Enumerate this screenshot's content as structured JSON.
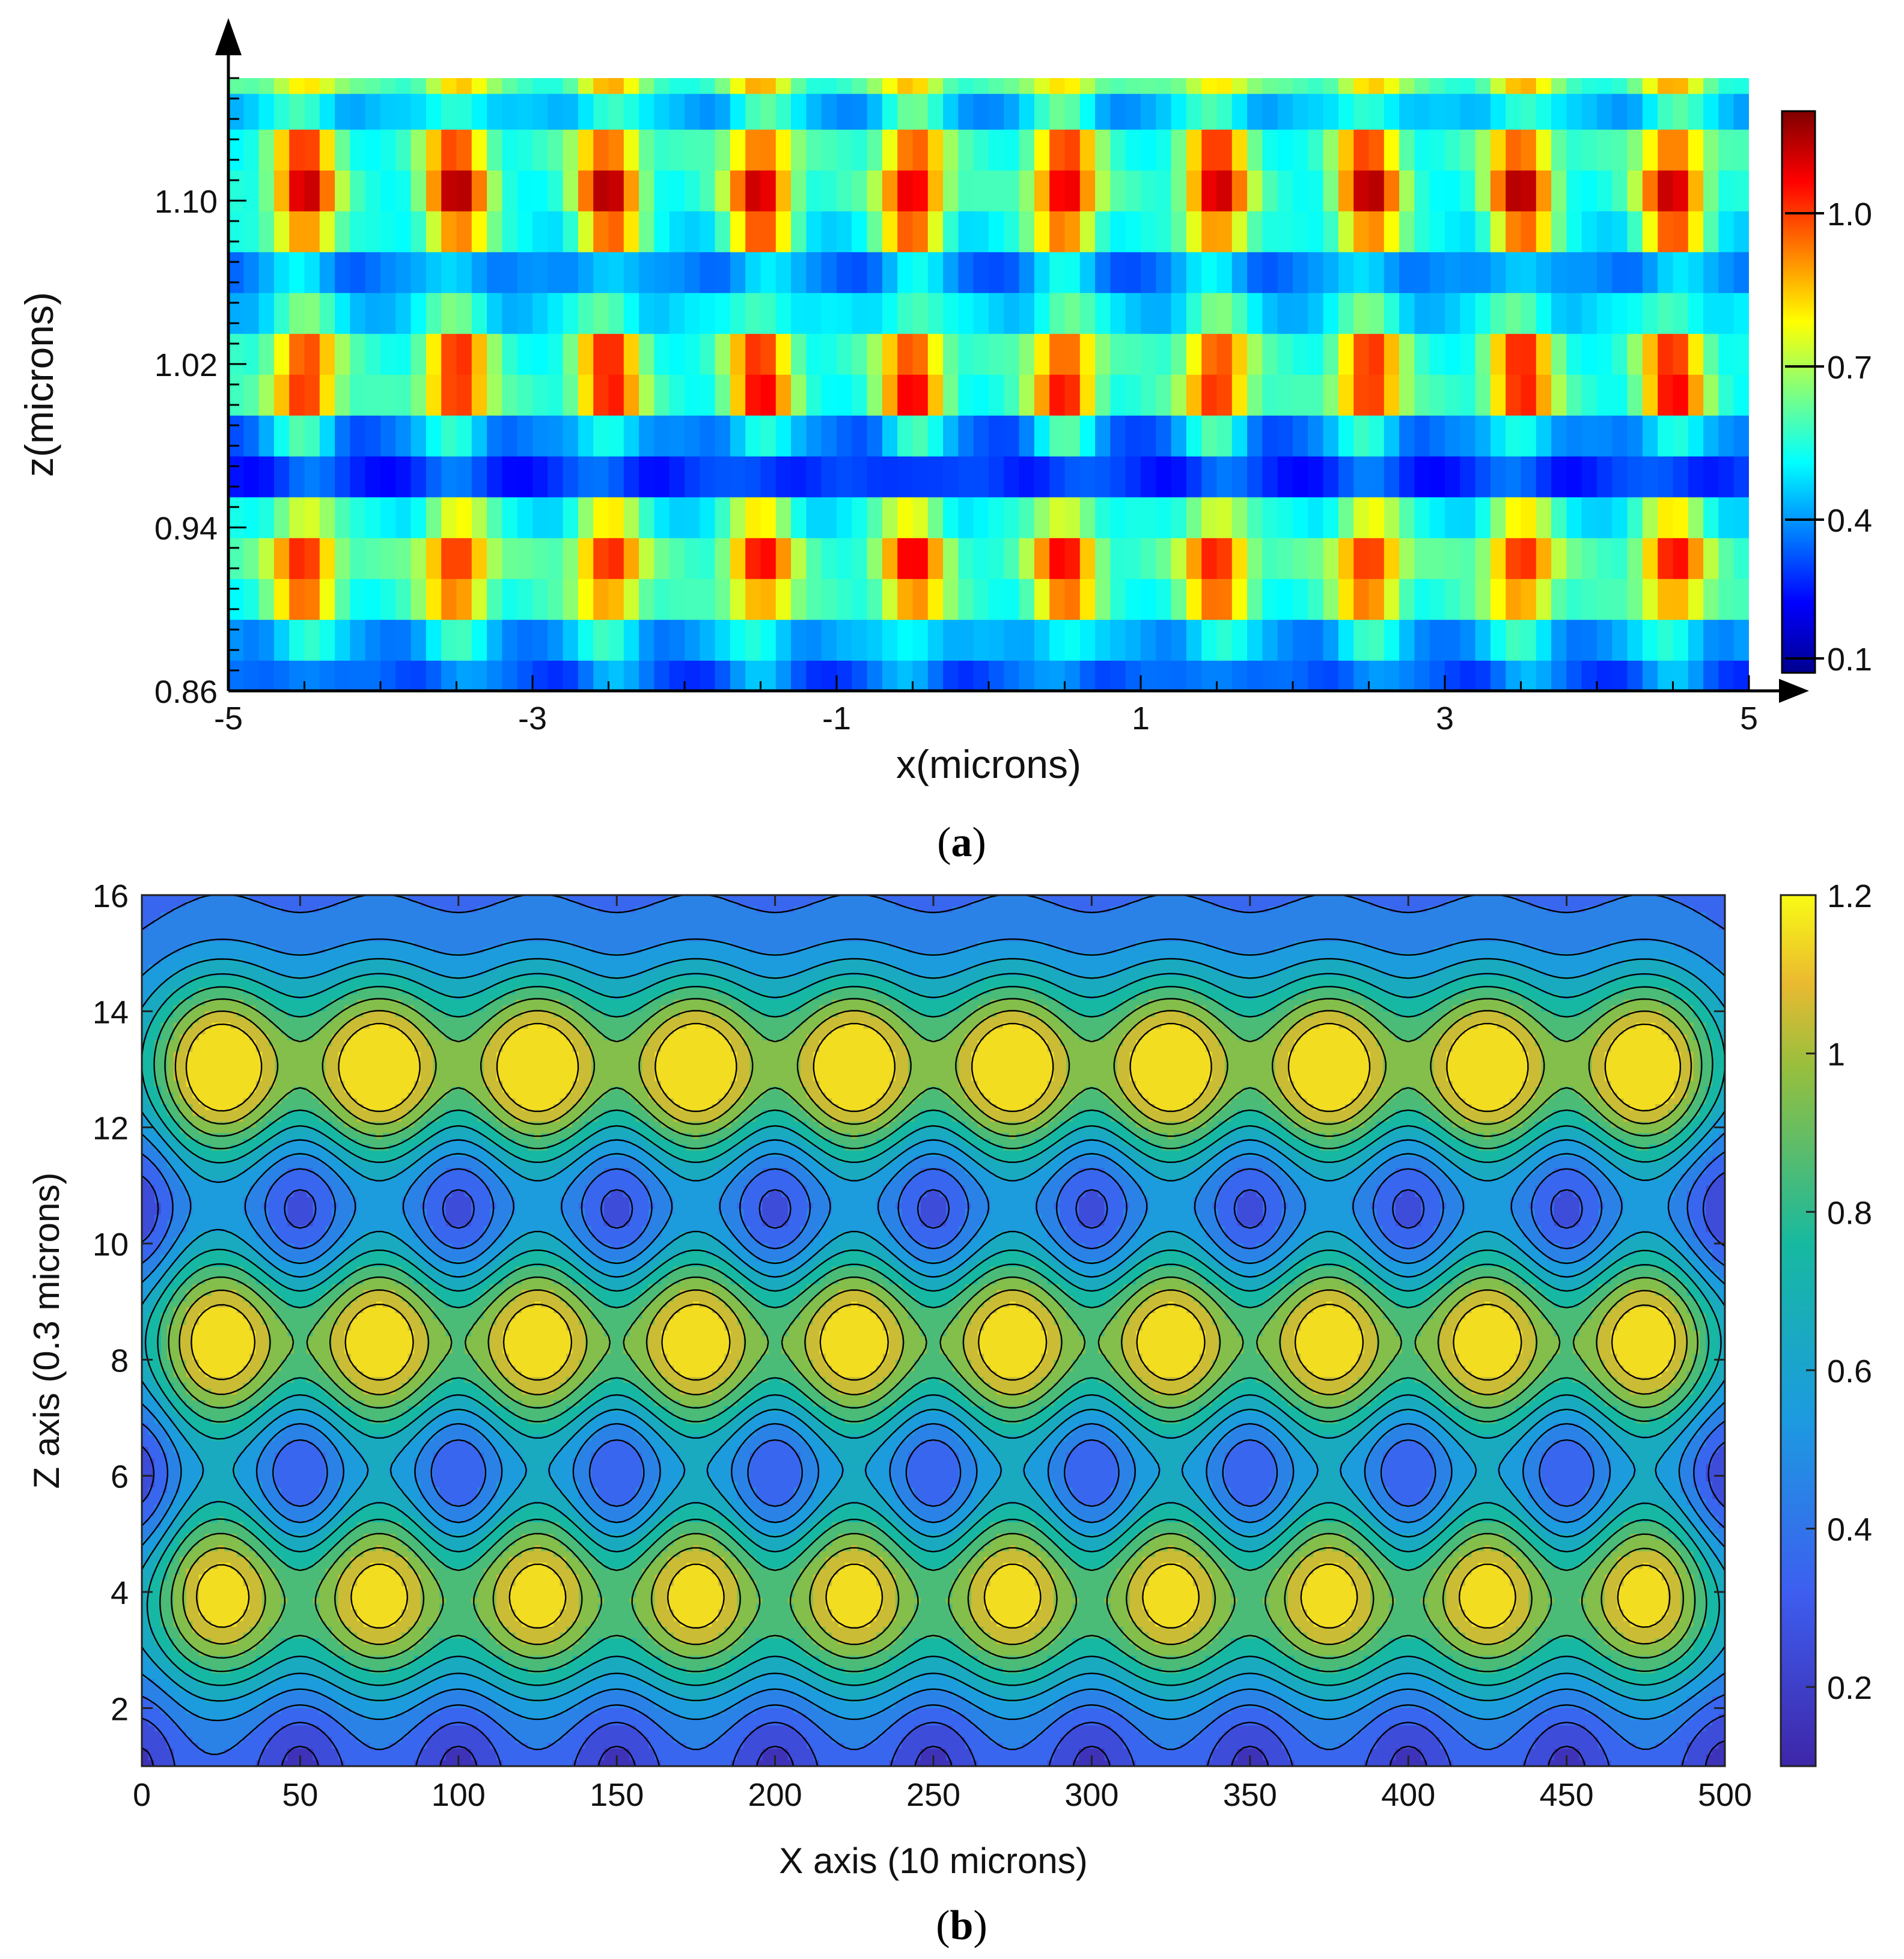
{
  "chart_data": [
    {
      "type": "heatmap",
      "panel_label": "a",
      "xlabel": "x(microns)",
      "ylabel": "z(microns)",
      "xlim": [
        -5,
        5
      ],
      "ylim": [
        0.86,
        1.16
      ],
      "x_ticks": [
        "-5",
        "-3",
        "-1",
        "1",
        "3",
        "5"
      ],
      "y_ticks": [
        "0.86",
        "0.94",
        "1.02",
        "1.10"
      ],
      "colorbar": {
        "ticks": [
          "0.1",
          "0.4",
          "0.7",
          "1.0"
        ],
        "range": [
          0.1,
          1.2
        ],
        "colormap": "jet"
      },
      "columns": 10,
      "column_centers": [
        -4.5,
        -3.5,
        -2.5,
        -1.5,
        -0.5,
        0.5,
        1.5,
        2.5,
        3.5,
        4.5
      ],
      "rows_bottom_to_top": [
        {
          "z": 0.865,
          "base": 0.32,
          "peak": 0.42
        },
        {
          "z": 0.885,
          "base": 0.4,
          "peak": 0.55
        },
        {
          "z": 0.905,
          "base": 0.55,
          "peak": 0.92
        },
        {
          "z": 0.925,
          "base": 0.58,
          "peak": 1.05
        },
        {
          "z": 0.945,
          "base": 0.5,
          "peak": 0.78
        },
        {
          "z": 0.965,
          "base": 0.28,
          "peak": 0.34
        },
        {
          "z": 0.985,
          "base": 0.35,
          "peak": 0.58
        },
        {
          "z": 1.005,
          "base": 0.55,
          "peak": 1.05
        },
        {
          "z": 1.025,
          "base": 0.55,
          "peak": 1.0
        },
        {
          "z": 1.045,
          "base": 0.46,
          "peak": 0.62
        },
        {
          "z": 1.065,
          "base": 0.36,
          "peak": 0.5
        },
        {
          "z": 1.085,
          "base": 0.5,
          "peak": 0.95
        },
        {
          "z": 1.105,
          "base": 0.55,
          "peak": 1.13
        },
        {
          "z": 1.125,
          "base": 0.55,
          "peak": 0.98
        },
        {
          "z": 1.145,
          "base": 0.42,
          "peak": 0.6
        },
        {
          "z": 1.16,
          "base": 0.58,
          "peak": 0.85
        }
      ]
    },
    {
      "type": "heatmap",
      "style": "filled contour",
      "panel_label": "b",
      "xlabel": "X axis (10 microns)",
      "ylabel": "Z axis (0.3 microns)",
      "xlim": [
        0,
        500
      ],
      "ylim": [
        1,
        16
      ],
      "x_ticks": [
        "0",
        "50",
        "100",
        "150",
        "200",
        "250",
        "300",
        "350",
        "400",
        "450",
        "500"
      ],
      "y_ticks": [
        "2",
        "4",
        "6",
        "8",
        "10",
        "12",
        "14",
        "16"
      ],
      "colorbar": {
        "ticks": [
          "0.2",
          "0.4",
          "0.6",
          "0.8",
          "1",
          "1.2"
        ],
        "range": [
          0.1,
          1.2
        ],
        "colormap": "parula"
      },
      "contour_levels": [
        0.2,
        0.3,
        0.4,
        0.5,
        0.6,
        0.7,
        0.8,
        0.9,
        1.0,
        1.1
      ],
      "peak_columns_x": [
        25,
        75,
        125,
        175,
        225,
        275,
        325,
        375,
        425,
        475
      ],
      "peak_rows": [
        {
          "z": 13,
          "value": 1.1
        },
        {
          "z": 8.3,
          "value": 1.05
        },
        {
          "z": 4,
          "value": 1.02
        }
      ],
      "minima_rows_z": [
        1,
        6,
        10.5
      ],
      "minimum_value": 0.12
    }
  ]
}
